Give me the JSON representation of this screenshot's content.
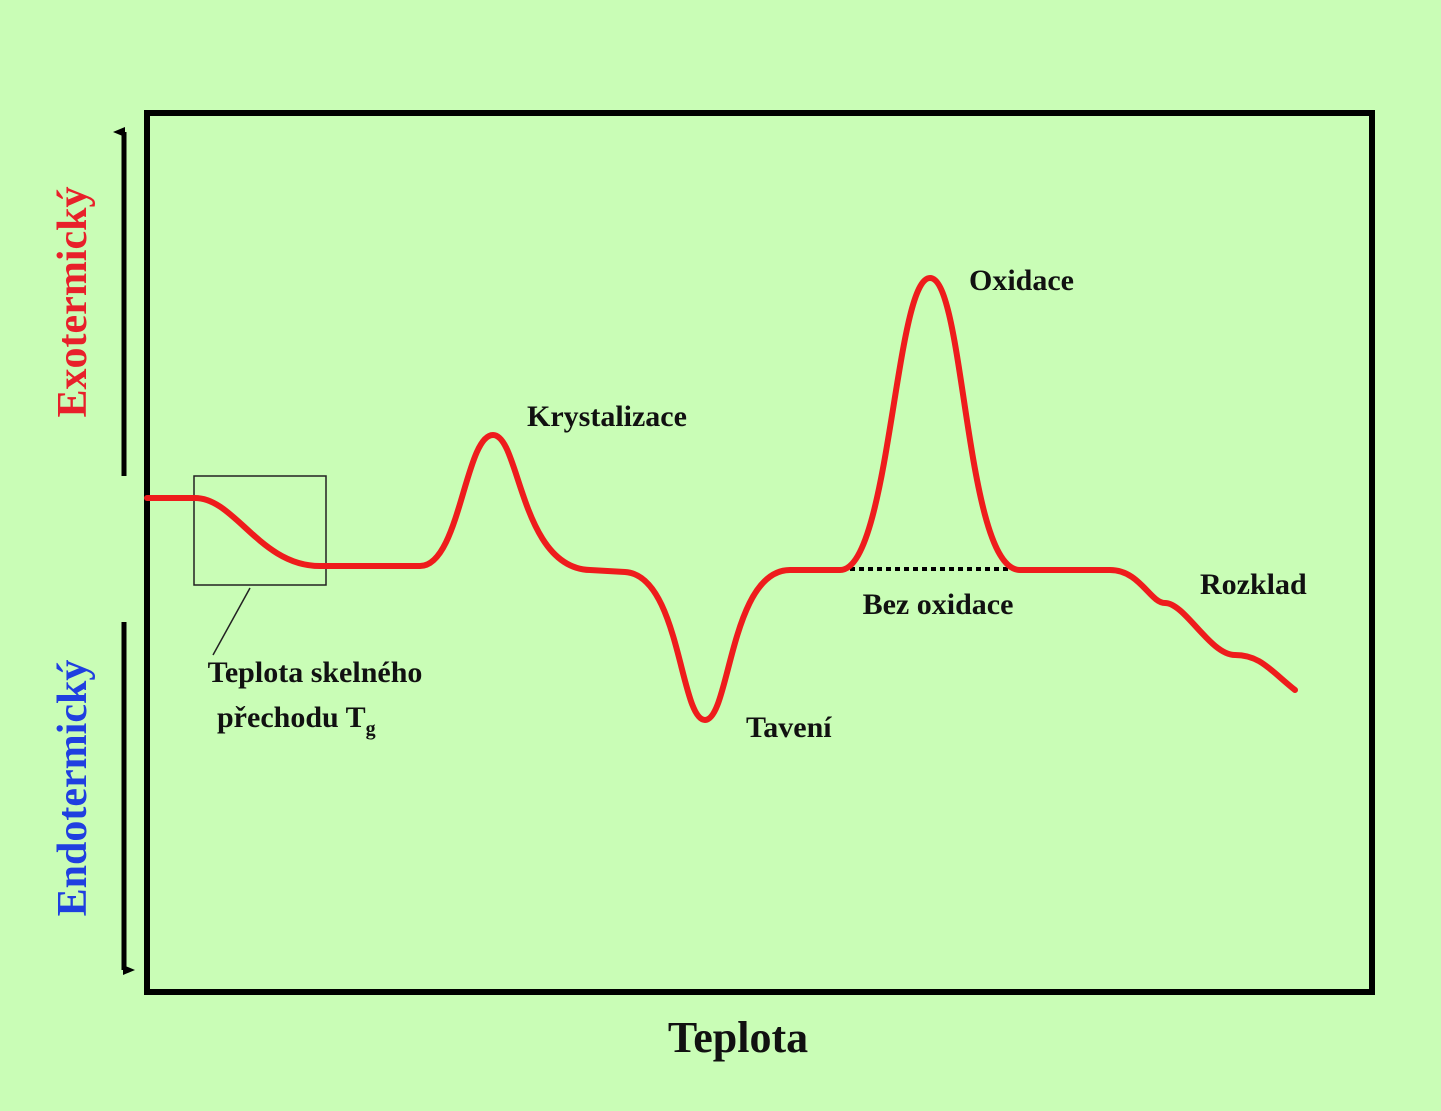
{
  "axes": {
    "y_upper": "Exotermický",
    "y_lower": "Endotermický",
    "x": "Teplota"
  },
  "labels": {
    "crystallization": "Krystalizace",
    "oxidation": "Oxidace",
    "no_oxidation": "Bez oxidace",
    "melting": "Tavení",
    "decomposition": "Rozklad",
    "glass_transition": {
      "line1": "Teplota skelného",
      "line2": "přechodu T",
      "subscript": "g"
    }
  }
}
